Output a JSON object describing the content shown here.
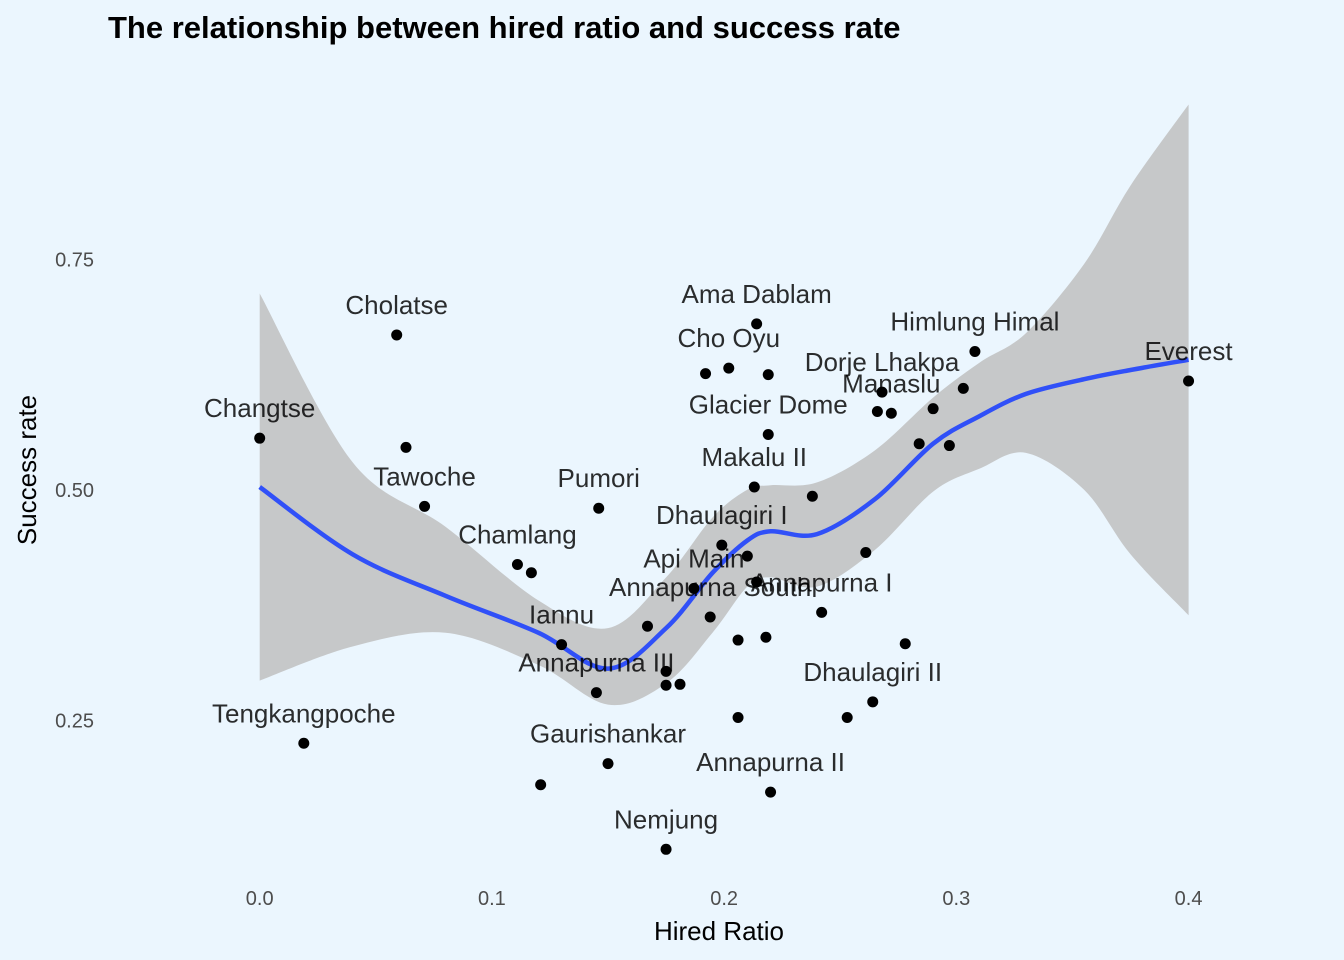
{
  "chart_data": {
    "type": "scatter",
    "title": "The relationship between hired ratio and success rate",
    "xlabel": "Hired Ratio",
    "ylabel": "Success rate",
    "xlim": [
      -0.058,
      0.42
    ],
    "ylim": [
      0.055,
      0.95
    ],
    "x_ticks": [
      0.0,
      0.1,
      0.2,
      0.3,
      0.4
    ],
    "x_tick_labels": [
      "0.0",
      "0.1",
      "0.2",
      "0.3",
      "0.4"
    ],
    "y_ticks": [
      0.25,
      0.5,
      0.75
    ],
    "y_tick_labels": [
      "0.25",
      "0.50",
      "0.75"
    ],
    "grid": false,
    "legend": "none",
    "colors": {
      "background": "#EBF6FE",
      "point": "#000000",
      "smooth_line": "#3050F8",
      "ribbon": "#BFBFBF"
    },
    "points": [
      {
        "x": 0.0,
        "y": 0.556,
        "label": "Changtse"
      },
      {
        "x": 0.019,
        "y": 0.225,
        "label": "Tengkangpoche"
      },
      {
        "x": 0.059,
        "y": 0.668,
        "label": "Cholatse"
      },
      {
        "x": 0.063,
        "y": 0.546,
        "label": ""
      },
      {
        "x": 0.071,
        "y": 0.482,
        "label": "Tawoche"
      },
      {
        "x": 0.111,
        "y": 0.419,
        "label": "Chamlang"
      },
      {
        "x": 0.117,
        "y": 0.41,
        "label": ""
      },
      {
        "x": 0.121,
        "y": 0.18,
        "label": ""
      },
      {
        "x": 0.13,
        "y": 0.332,
        "label": "Iannu"
      },
      {
        "x": 0.146,
        "y": 0.48,
        "label": "Pumori"
      },
      {
        "x": 0.145,
        "y": 0.28,
        "label": "Annapurna III"
      },
      {
        "x": 0.15,
        "y": 0.203,
        "label": "Gaurishankar"
      },
      {
        "x": 0.167,
        "y": 0.352,
        "label": ""
      },
      {
        "x": 0.175,
        "y": 0.303,
        "label": ""
      },
      {
        "x": 0.175,
        "y": 0.288,
        "label": ""
      },
      {
        "x": 0.175,
        "y": 0.11,
        "label": "Nemjung"
      },
      {
        "x": 0.181,
        "y": 0.289,
        "label": ""
      },
      {
        "x": 0.187,
        "y": 0.393,
        "label": "Api Main"
      },
      {
        "x": 0.192,
        "y": 0.626,
        "label": ""
      },
      {
        "x": 0.194,
        "y": 0.362,
        "label": "Annapurna South"
      },
      {
        "x": 0.199,
        "y": 0.44,
        "label": "Dhaulagiri I"
      },
      {
        "x": 0.202,
        "y": 0.632,
        "label": "Cho Oyu"
      },
      {
        "x": 0.206,
        "y": 0.337,
        "label": ""
      },
      {
        "x": 0.206,
        "y": 0.253,
        "label": ""
      },
      {
        "x": 0.21,
        "y": 0.428,
        "label": ""
      },
      {
        "x": 0.213,
        "y": 0.503,
        "label": "Makalu II"
      },
      {
        "x": 0.214,
        "y": 0.4,
        "label": ""
      },
      {
        "x": 0.214,
        "y": 0.68,
        "label": "Ama Dablam"
      },
      {
        "x": 0.219,
        "y": 0.625,
        "label": ""
      },
      {
        "x": 0.219,
        "y": 0.56,
        "label": "Glacier Dome"
      },
      {
        "x": 0.218,
        "y": 0.34,
        "label": ""
      },
      {
        "x": 0.22,
        "y": 0.172,
        "label": "Annapurna II"
      },
      {
        "x": 0.238,
        "y": 0.493,
        "label": ""
      },
      {
        "x": 0.242,
        "y": 0.367,
        "label": "Annapurna I"
      },
      {
        "x": 0.261,
        "y": 0.432,
        "label": ""
      },
      {
        "x": 0.253,
        "y": 0.253,
        "label": ""
      },
      {
        "x": 0.264,
        "y": 0.27,
        "label": "Dhaulagiri II"
      },
      {
        "x": 0.266,
        "y": 0.585,
        "label": ""
      },
      {
        "x": 0.268,
        "y": 0.606,
        "label": "Dorje Lhakpa"
      },
      {
        "x": 0.272,
        "y": 0.583,
        "label": "Manaslu"
      },
      {
        "x": 0.278,
        "y": 0.333,
        "label": ""
      },
      {
        "x": 0.284,
        "y": 0.55,
        "label": ""
      },
      {
        "x": 0.29,
        "y": 0.588,
        "label": ""
      },
      {
        "x": 0.297,
        "y": 0.548,
        "label": ""
      },
      {
        "x": 0.303,
        "y": 0.61,
        "label": ""
      },
      {
        "x": 0.308,
        "y": 0.65,
        "label": "Himlung Himal"
      },
      {
        "x": 0.4,
        "y": 0.618,
        "label": "Everest"
      }
    ],
    "smooth": [
      {
        "x": 0.0,
        "y": 0.503,
        "lo": 0.293,
        "hi": 0.713
      },
      {
        "x": 0.04,
        "y": 0.43,
        "lo": 0.33,
        "hi": 0.53
      },
      {
        "x": 0.08,
        "y": 0.385,
        "lo": 0.345,
        "hi": 0.46
      },
      {
        "x": 0.12,
        "y": 0.345,
        "lo": 0.31,
        "hi": 0.38
      },
      {
        "x": 0.15,
        "y": 0.306,
        "lo": 0.267,
        "hi": 0.35
      },
      {
        "x": 0.175,
        "y": 0.35,
        "lo": 0.29,
        "hi": 0.405
      },
      {
        "x": 0.195,
        "y": 0.41,
        "lo": 0.345,
        "hi": 0.47
      },
      {
        "x": 0.21,
        "y": 0.445,
        "lo": 0.395,
        "hi": 0.5
      },
      {
        "x": 0.22,
        "y": 0.455,
        "lo": 0.405,
        "hi": 0.505
      },
      {
        "x": 0.24,
        "y": 0.452,
        "lo": 0.395,
        "hi": 0.508
      },
      {
        "x": 0.265,
        "y": 0.49,
        "lo": 0.435,
        "hi": 0.543
      },
      {
        "x": 0.29,
        "y": 0.55,
        "lo": 0.498,
        "hi": 0.6
      },
      {
        "x": 0.31,
        "y": 0.58,
        "lo": 0.523,
        "hi": 0.638
      },
      {
        "x": 0.33,
        "y": 0.604,
        "lo": 0.54,
        "hi": 0.67
      },
      {
        "x": 0.355,
        "y": 0.62,
        "lo": 0.5,
        "hi": 0.745
      },
      {
        "x": 0.375,
        "y": 0.63,
        "lo": 0.43,
        "hi": 0.83
      },
      {
        "x": 0.4,
        "y": 0.641,
        "lo": 0.364,
        "hi": 0.918
      }
    ]
  }
}
